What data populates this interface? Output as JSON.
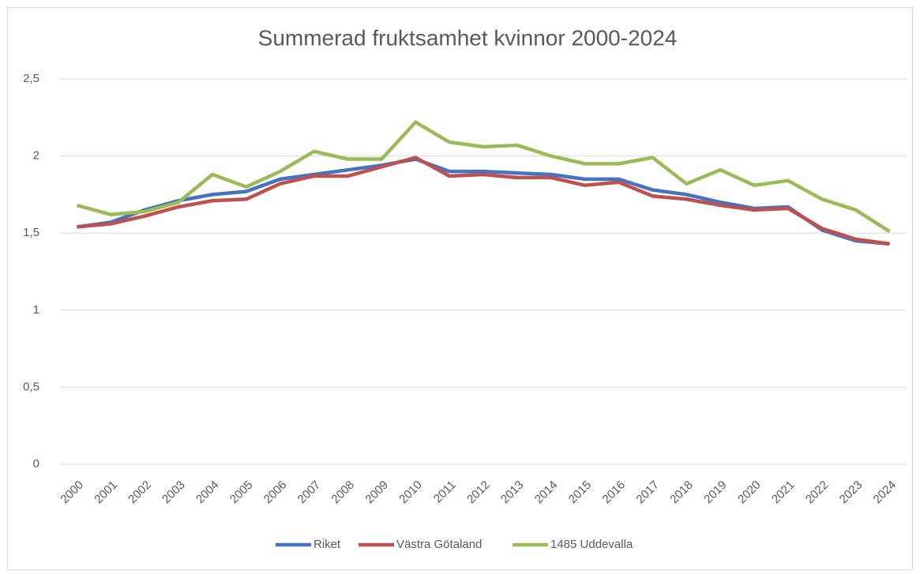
{
  "chart_data": {
    "type": "line",
    "title": "Summerad fruktsamhet kvinnor 2000-2024",
    "categories": [
      "2000",
      "2001",
      "2002",
      "2003",
      "2004",
      "2005",
      "2006",
      "2007",
      "2008",
      "2009",
      "2010",
      "2011",
      "2012",
      "2013",
      "2014",
      "2015",
      "2016",
      "2017",
      "2018",
      "2019",
      "2020",
      "2021",
      "2022",
      "2023",
      "2024"
    ],
    "series": [
      {
        "name": "Riket",
        "color": "#4472c4",
        "values": [
          1.54,
          1.57,
          1.65,
          1.71,
          1.75,
          1.77,
          1.85,
          1.88,
          1.91,
          1.94,
          1.98,
          1.9,
          1.9,
          1.89,
          1.88,
          1.85,
          1.85,
          1.78,
          1.75,
          1.7,
          1.66,
          1.67,
          1.52,
          1.45,
          1.43
        ]
      },
      {
        "name": "Västra Götaland",
        "color": "#c0504d",
        "values": [
          1.54,
          1.56,
          1.61,
          1.67,
          1.71,
          1.72,
          1.82,
          1.87,
          1.87,
          1.93,
          1.99,
          1.87,
          1.88,
          1.86,
          1.86,
          1.81,
          1.83,
          1.74,
          1.72,
          1.68,
          1.65,
          1.66,
          1.53,
          1.46,
          1.43
        ]
      },
      {
        "name": "1485 Uddevalla",
        "color": "#9bbb59",
        "values": [
          1.68,
          1.62,
          1.64,
          1.7,
          1.88,
          1.8,
          1.9,
          2.03,
          1.98,
          1.98,
          2.22,
          2.09,
          2.06,
          2.07,
          2.0,
          1.95,
          1.95,
          1.99,
          1.82,
          1.91,
          1.81,
          1.84,
          1.72,
          1.65,
          1.51
        ]
      }
    ],
    "ylim": [
      0,
      2.5
    ],
    "yticks": [
      0,
      {
        "value": 0.5,
        "label": "0,5"
      },
      1,
      {
        "value": 1.5,
        "label": "1,5"
      },
      2,
      {
        "value": 2.5,
        "label": "2,5"
      }
    ],
    "grid": true,
    "legend": "bottom"
  }
}
